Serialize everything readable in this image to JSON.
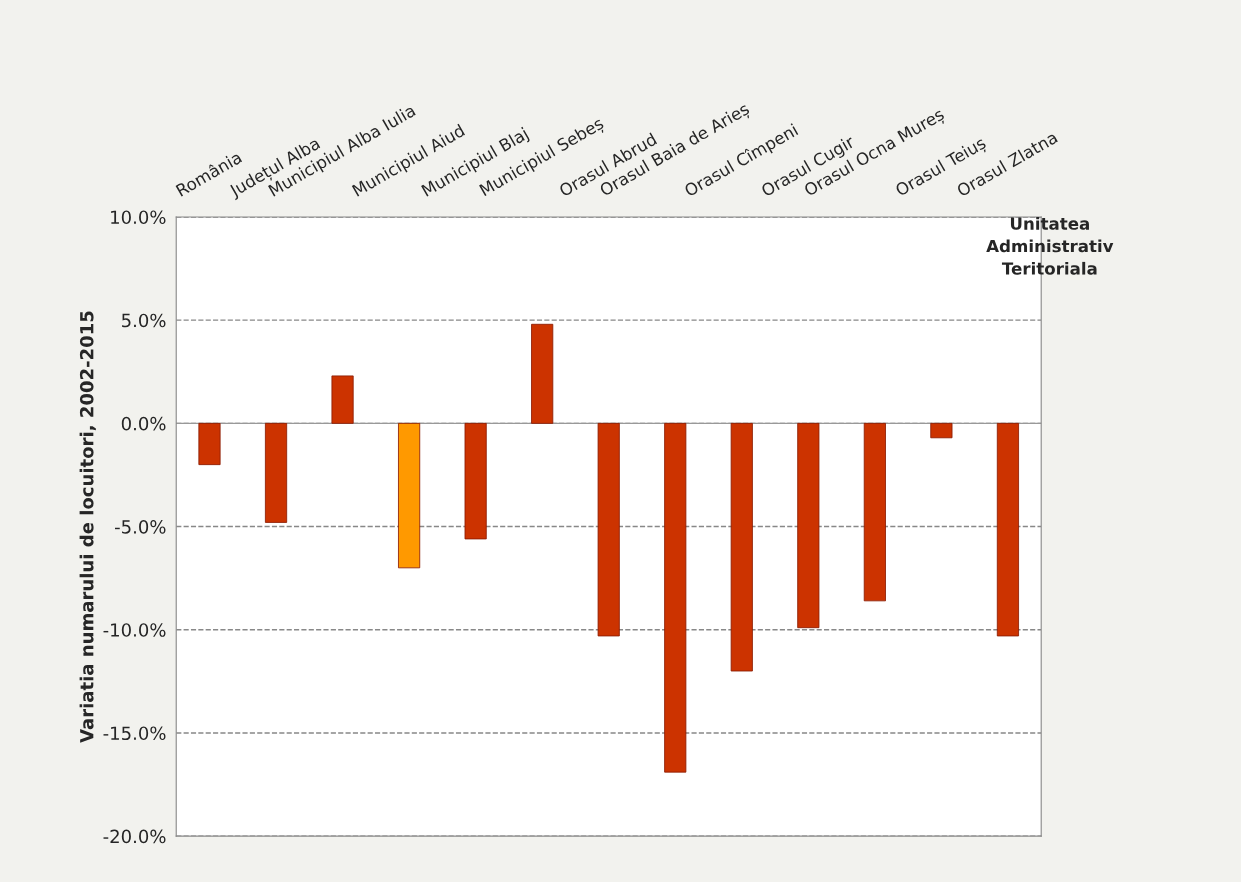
{
  "chart_data": {
    "type": "bar",
    "ylabel": "Variatia numarului de locuitori, 2002-2015",
    "xlabel": "Unitatea\nAdministrativ\nTeritoriala",
    "categories": [
      "România",
      "Județul Alba",
      "Municipiul Alba Iulia",
      "Municipiul Aiud",
      "Municipiul Blaj",
      "Municipiul Sebeș",
      "Orasul Abrud",
      "Orasul Baia de Arieș",
      "Orasul Cîmpeni",
      "Orasul Cugir",
      "Orasul Ocna Mureș",
      "Orasul Teiuș",
      "Orasul Zlatna"
    ],
    "values": [
      -2.0,
      -4.8,
      2.3,
      -7.0,
      -5.6,
      4.8,
      -10.3,
      -16.9,
      -12.0,
      -9.9,
      -8.6,
      -0.7,
      -10.3
    ],
    "colors": [
      "#cc3300",
      "#cc3300",
      "#cc3300",
      "#ff9900",
      "#cc3300",
      "#cc3300",
      "#cc3300",
      "#cc3300",
      "#cc3300",
      "#cc3300",
      "#cc3300",
      "#cc3300",
      "#cc3300"
    ],
    "ylim": [
      -20,
      10
    ],
    "yticks": [
      {
        "value": -20,
        "label": "-20.0%"
      },
      {
        "value": -15,
        "label": "-15.0%"
      },
      {
        "value": -10,
        "label": "-10.0%"
      },
      {
        "value": -5,
        "label": "-5.0%"
      },
      {
        "value": 0,
        "label": "0.0%"
      },
      {
        "value": 5,
        "label": "5.0%"
      },
      {
        "value": 10,
        "label": "10.0%"
      }
    ],
    "grid": "y",
    "legend": false
  }
}
